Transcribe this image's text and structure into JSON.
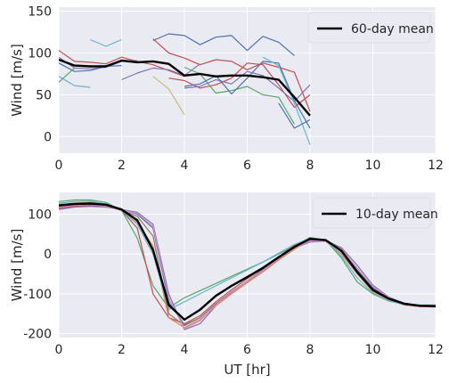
{
  "chart_data": [
    {
      "type": "line",
      "xlabel": "",
      "ylabel": "Wind [m/s]",
      "xlim": [
        0,
        12
      ],
      "ylim": [
        -20,
        155
      ],
      "xticks": [
        0,
        2,
        4,
        6,
        8,
        10,
        12
      ],
      "yticks": [
        0,
        50,
        100,
        150
      ],
      "grid": true,
      "legend_placement": "top-right",
      "legend": [
        {
          "label": "60-day mean",
          "color": "#000000"
        }
      ],
      "series": [
        {
          "color": "#4c72b0",
          "x": [
            3,
            3.5,
            4,
            4.5,
            5,
            5.5,
            6,
            6.5,
            7,
            7.5
          ],
          "y": [
            115,
            123,
            121,
            110,
            119,
            121,
            103,
            120,
            113,
            97
          ]
        },
        {
          "color": "#c44e52",
          "x": [
            3,
            3.5,
            4,
            4.5,
            5,
            5.5,
            6,
            6.5,
            7,
            7.5,
            8
          ],
          "y": [
            117,
            100,
            94,
            86,
            92,
            90,
            80,
            88,
            83,
            77,
            30
          ]
        },
        {
          "color": "#64b5cd",
          "x": [
            1,
            1.5,
            2
          ],
          "y": [
            116,
            108,
            116
          ]
        },
        {
          "color": "#c44e52",
          "x": [
            0,
            0.5,
            1,
            1.5,
            2,
            2.5,
            3,
            3.5,
            4
          ],
          "y": [
            103,
            90,
            89,
            87,
            95,
            90,
            86,
            79,
            72
          ]
        },
        {
          "color": "#8172b2",
          "x": [
            0,
            0.5,
            1,
            1.5,
            2,
            2.5
          ],
          "y": [
            95,
            82,
            81,
            83,
            90,
            91
          ]
        },
        {
          "color": "#4c72b0",
          "x": [
            0,
            0.5,
            1,
            1.5,
            2
          ],
          "y": [
            88,
            78,
            79,
            84,
            85
          ]
        },
        {
          "color": "#64b5cd",
          "x": [
            0,
            0.5,
            1
          ],
          "y": [
            72,
            61,
            59
          ]
        },
        {
          "color": "#55a868",
          "x": [
            0,
            0.5
          ],
          "y": [
            65,
            82
          ]
        },
        {
          "color": "#8172b2",
          "x": [
            2,
            2.5,
            3,
            3.5,
            4,
            4.5
          ],
          "y": [
            68,
            76,
            82,
            80,
            73,
            87
          ]
        },
        {
          "color": "#ccb974",
          "x": [
            3,
            3.5,
            4
          ],
          "y": [
            72,
            57,
            26
          ]
        },
        {
          "color": "#c44e52",
          "x": [
            3.5,
            4,
            4.5,
            5,
            5.5,
            6,
            6.5,
            7,
            7.5,
            8
          ],
          "y": [
            70,
            67,
            58,
            62,
            70,
            88,
            86,
            62,
            35,
            50
          ]
        },
        {
          "color": "#55a868",
          "x": [
            4,
            4.5,
            5,
            5.5,
            6,
            6.5,
            7,
            7.5
          ],
          "y": [
            83,
            75,
            52,
            55,
            60,
            50,
            47,
            15
          ]
        },
        {
          "color": "#8172b2",
          "x": [
            4,
            4.5,
            5,
            5.5,
            6,
            6.5,
            7,
            7.5,
            8
          ],
          "y": [
            58,
            60,
            68,
            63,
            78,
            73,
            58,
            42,
            62
          ]
        },
        {
          "color": "#4c72b0",
          "x": [
            4,
            4.5,
            5,
            5.5,
            6,
            6.5,
            7,
            7.5,
            8
          ],
          "y": [
            60,
            63,
            73,
            51,
            70,
            90,
            88,
            43,
            10
          ]
        },
        {
          "color": "#64b5cd",
          "x": [
            6.5,
            7,
            7.5,
            8
          ],
          "y": [
            95,
            85,
            40,
            -10
          ]
        },
        {
          "color": "#4c72b0",
          "x": [
            7,
            7.5,
            8
          ],
          "y": [
            40,
            10,
            20
          ]
        }
      ],
      "mean_series": {
        "name": "60-day mean",
        "color": "#000000",
        "x": [
          0,
          0.5,
          1,
          1.5,
          2,
          2.5,
          3,
          3.5,
          4,
          4.5,
          5,
          5.5,
          6,
          6.5,
          7,
          7.5,
          8
        ],
        "y": [
          92,
          85,
          84,
          84,
          91,
          89,
          90,
          87,
          73,
          75,
          72,
          73,
          73,
          71,
          68,
          47,
          25
        ]
      }
    },
    {
      "type": "line",
      "xlabel": "UT [hr]",
      "ylabel": "Wind [m/s]",
      "xlim": [
        0,
        12
      ],
      "ylim": [
        -210,
        155
      ],
      "xticks": [
        0,
        2,
        4,
        6,
        8,
        10,
        12
      ],
      "yticks": [
        -200,
        -100,
        0,
        100
      ],
      "grid": true,
      "legend_placement": "top-right",
      "legend": [
        {
          "label": "10-day mean",
          "color": "#000000"
        }
      ],
      "series": [
        {
          "color": "#4c72b0",
          "x": [
            0,
            0.5,
            1,
            1.5,
            2,
            2.5,
            3,
            3.5,
            4,
            4.5,
            5,
            5.5,
            6,
            6.5,
            7,
            7.5,
            8,
            8.5,
            9,
            9.5,
            10,
            10.5,
            11,
            11.5,
            12
          ],
          "y": [
            118,
            123,
            125,
            122,
            112,
            100,
            65,
            -120,
            -178,
            -160,
            -125,
            -95,
            -68,
            -38,
            -8,
            20,
            37,
            35,
            15,
            -40,
            -85,
            -110,
            -125,
            -130,
            -130
          ]
        },
        {
          "color": "#55a868",
          "x": [
            0,
            0.5,
            1,
            1.5,
            2,
            2.5,
            3,
            3.5,
            4,
            4.5,
            5,
            5.5,
            6,
            6.5,
            7,
            7.5,
            8,
            8.5,
            9,
            9.5,
            10,
            10.5,
            11,
            11.5,
            12
          ],
          "y": [
            132,
            136,
            136,
            130,
            110,
            40,
            -80,
            -135,
            -110,
            -92,
            -74,
            -56,
            -38,
            -20,
            0,
            20,
            42,
            35,
            -10,
            -70,
            -100,
            -118,
            -125,
            -130,
            -132
          ]
        },
        {
          "color": "#c44e52",
          "x": [
            0,
            0.5,
            1,
            1.5,
            2,
            2.5,
            3,
            3.5,
            4,
            4.5,
            5,
            5.5,
            6,
            6.5,
            7,
            7.5,
            8,
            8.5,
            9,
            9.5,
            10,
            10.5,
            11,
            11.5,
            12
          ],
          "y": [
            115,
            120,
            122,
            120,
            110,
            65,
            -100,
            -160,
            -175,
            -155,
            -120,
            -90,
            -62,
            -35,
            -8,
            22,
            38,
            36,
            5,
            -45,
            -92,
            -115,
            -128,
            -132,
            -133
          ]
        },
        {
          "color": "#8172b2",
          "x": [
            0,
            0.5,
            1,
            1.5,
            2,
            2.5,
            3,
            3.5,
            4,
            4.5,
            5,
            5.5,
            6,
            6.5,
            7,
            7.5,
            8,
            8.5,
            9,
            9.5,
            10,
            10.5,
            11,
            11.5,
            12
          ],
          "y": [
            112,
            118,
            120,
            118,
            112,
            105,
            75,
            -100,
            -190,
            -175,
            -130,
            -98,
            -70,
            -42,
            -12,
            15,
            30,
            33,
            16,
            -28,
            -78,
            -108,
            -124,
            -130,
            -131
          ]
        },
        {
          "color": "#dd8452",
          "x": [
            0,
            0.5,
            1,
            1.5,
            2,
            2.5,
            3,
            3.5,
            4,
            4.5,
            5,
            5.5,
            6,
            6.5,
            7,
            7.5,
            8,
            8.5,
            9,
            9.5,
            10,
            10.5,
            11,
            11.5,
            12
          ],
          "y": [
            125,
            128,
            130,
            125,
            112,
            80,
            20,
            -160,
            -185,
            -165,
            -130,
            -100,
            -72,
            -45,
            -15,
            12,
            36,
            32,
            0,
            -50,
            -95,
            -115,
            -128,
            -132,
            -133
          ]
        },
        {
          "color": "#64b5cd",
          "x": [
            0,
            0.5,
            1,
            1.5,
            2,
            2.5,
            3,
            3.5,
            4,
            4.5,
            5,
            5.5,
            6,
            6.5,
            7,
            7.5,
            8,
            8.5,
            9,
            9.5,
            10,
            10.5,
            11,
            11.5,
            12
          ],
          "y": [
            128,
            132,
            133,
            126,
            110,
            75,
            0,
            -140,
            -120,
            -100,
            -80,
            -60,
            -40,
            -20,
            2,
            24,
            40,
            35,
            -5,
            -60,
            -98,
            -118,
            -127,
            -128,
            -128
          ]
        },
        {
          "color": "#937860",
          "x": [
            0,
            0.5,
            1,
            1.5,
            2,
            2.5,
            3,
            3.5,
            4,
            4.5,
            5,
            5.5,
            6,
            6.5,
            7,
            7.5,
            8,
            8.5,
            9,
            9.5,
            10,
            10.5,
            11,
            11.5,
            12
          ],
          "y": [
            120,
            124,
            127,
            122,
            110,
            95,
            45,
            -150,
            -180,
            -160,
            -125,
            -96,
            -68,
            -40,
            -10,
            18,
            36,
            34,
            8,
            -42,
            -90,
            -112,
            -126,
            -131,
            -132
          ]
        },
        {
          "color": "#da8bc3",
          "x": [
            0,
            0.5,
            1,
            1.5,
            2,
            2.5,
            3,
            3.5,
            4,
            4.5,
            5,
            5.5,
            6,
            6.5,
            7,
            7.5,
            8,
            8.5,
            9,
            9.5,
            10,
            10.5,
            11,
            11.5,
            12
          ],
          "y": [
            118,
            122,
            125,
            120,
            111,
            102,
            70,
            -110,
            -188,
            -168,
            -128,
            -97,
            -69,
            -41,
            -11,
            16,
            33,
            34,
            12,
            -35,
            -82,
            -110,
            -125,
            -130,
            -131
          ]
        }
      ],
      "mean_series": {
        "name": "10-day mean",
        "color": "#000000",
        "x": [
          0,
          0.5,
          1,
          1.5,
          2,
          2.5,
          3,
          3.5,
          4,
          4.5,
          5,
          5.5,
          6,
          6.5,
          7,
          7.5,
          8,
          8.5,
          9,
          9.5,
          10,
          10.5,
          11,
          11.5,
          12
        ],
        "y": [
          122,
          126,
          127,
          124,
          112,
          85,
          10,
          -128,
          -165,
          -140,
          -105,
          -80,
          -58,
          -35,
          -8,
          18,
          38,
          35,
          8,
          -45,
          -90,
          -112,
          -125,
          -130,
          -131
        ]
      }
    }
  ]
}
